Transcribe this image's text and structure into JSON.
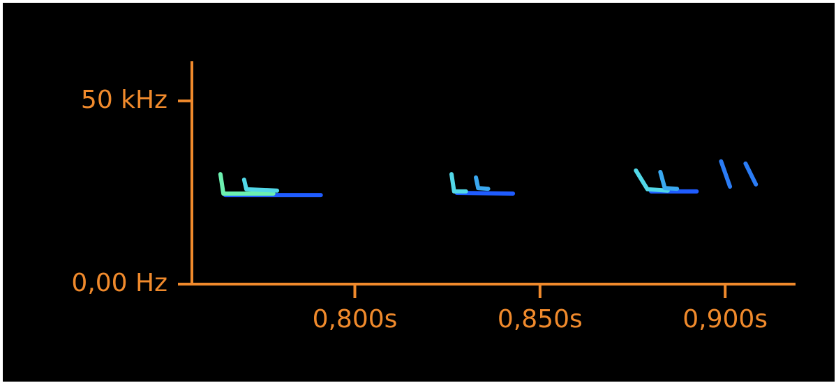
{
  "chart_data": {
    "type": "spectrogram",
    "xlim": [
      0.756,
      0.919
    ],
    "ylim": [
      0,
      60800
    ],
    "xticks": [
      {
        "value": 0.8,
        "label": "0,800s"
      },
      {
        "value": 0.85,
        "label": "0,850s"
      },
      {
        "value": 0.9,
        "label": "0,900s"
      }
    ],
    "yticks": [
      {
        "value": 50000,
        "label": "50 kHz"
      },
      {
        "value": 0,
        "label": "0,00 Hz"
      }
    ],
    "axis_color": "#f08a2c",
    "series": [
      {
        "color": "#1f5cff",
        "x": [
          0.765,
          0.7908
        ],
        "values": [
          24300,
          24300
        ]
      },
      {
        "color": "#6cf0b0",
        "x": [
          0.7637,
          0.7645,
          0.778
        ],
        "values": [
          30000,
          24700,
          24700
        ]
      },
      {
        "color": "#52d8e8",
        "x": [
          0.7701,
          0.7707,
          0.779
        ],
        "values": [
          28500,
          25900,
          25500
        ]
      },
      {
        "color": "#1f5cff",
        "x": [
          0.8275,
          0.8427
        ],
        "values": [
          24900,
          24700
        ]
      },
      {
        "color": "#52d8e8",
        "x": [
          0.8261,
          0.8268,
          0.83
        ],
        "values": [
          30000,
          25300,
          25300
        ]
      },
      {
        "color": "#3aa8f0",
        "x": [
          0.8327,
          0.8333,
          0.836
        ],
        "values": [
          29100,
          26200,
          26000
        ]
      },
      {
        "color": "#1f5cff",
        "x": [
          0.88,
          0.8923
        ],
        "values": [
          25300,
          25300
        ]
      },
      {
        "color": "#52d8e8",
        "x": [
          0.8759,
          0.879,
          0.8845
        ],
        "values": [
          31000,
          25900,
          25500
        ]
      },
      {
        "color": "#3aa8f0",
        "x": [
          0.8825,
          0.8837,
          0.887
        ],
        "values": [
          30600,
          26200,
          26000
        ]
      },
      {
        "color": "#2b7cf5",
        "x": [
          0.8989,
          0.9013
        ],
        "values": [
          33500,
          26600
        ]
      },
      {
        "color": "#2b7cf5",
        "x": [
          0.9055,
          0.9083
        ],
        "values": [
          32900,
          27200
        ]
      }
    ]
  }
}
